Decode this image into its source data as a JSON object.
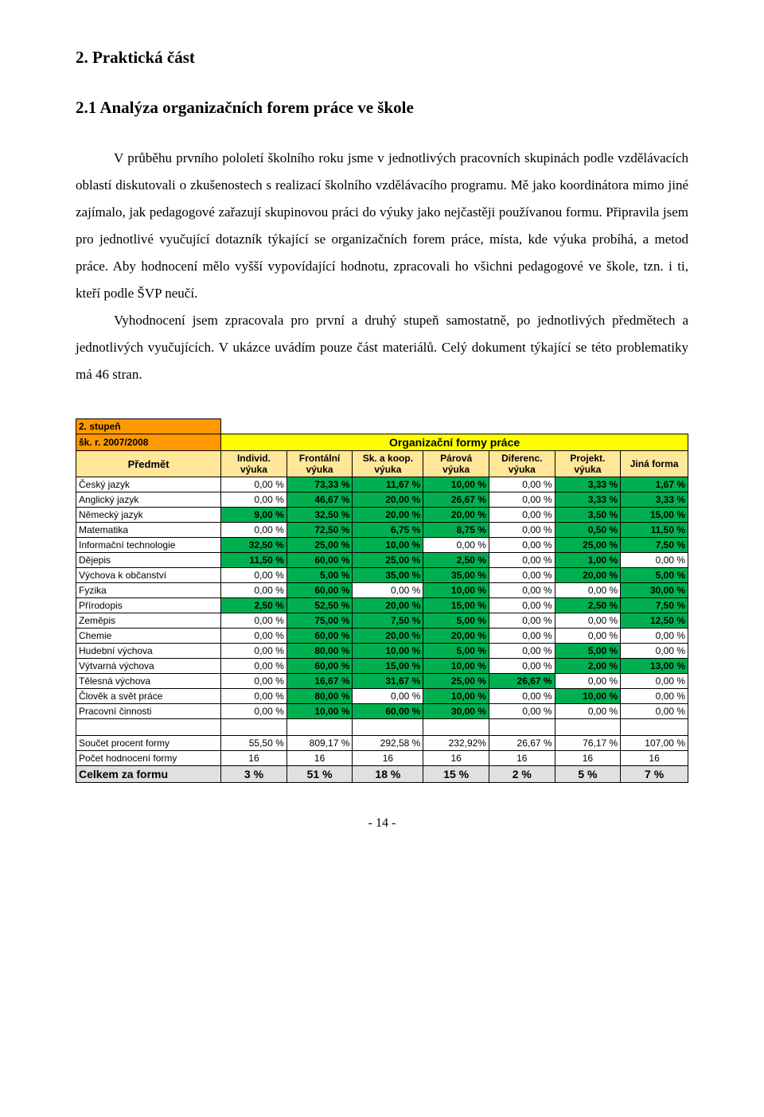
{
  "section_title": "2. Praktická část",
  "sub_title": "2.1  Analýza organizačních forem práce ve škole",
  "para1": "V průběhu prvního pololetí školního roku jsme v jednotlivých pracovních skupinách podle vzdělávacích oblastí diskutovali o zkušenostech s realizací školního vzdělávacího programu. Mě jako koordinátora mimo jiné zajímalo, jak pedagogové zařazují skupinovou práci do výuky jako nejčastěji používanou formu. Připravila jsem pro jednotlivé vyučující dotazník týkající se organizačních forem práce, místa, kde výuka probíhá, a metod práce. Aby hodnocení mělo vyšší vypovídající hodnotu, zpracovali ho všichni pedagogové ve škole, tzn. i ti, kteří podle ŠVP neučí.",
  "para2": "Vyhodnocení jsem zpracovala pro první a druhý stupeň samostatně, po jednotlivých předmětech a jednotlivých vyučujících. V ukázce uvádím pouze část materiálů. Celý dokument týkající se této problematiky má 46 stran.",
  "meta_rows": [
    "2. stupeň",
    "šk. r. 2007/2008"
  ],
  "table_header": "Organizační formy práce",
  "subject_header": "Předmět",
  "columns": [
    "Individ. výuka",
    "Frontální výuka",
    "Sk. a koop. výuka",
    "Párová výuka",
    "Diferenc. výuka",
    "Projekt. výuka",
    "Jiná forma"
  ],
  "rows": [
    {
      "label": "Český jazyk",
      "cells": [
        "0,00 %",
        "73,33 %",
        "11,67 %",
        "10,00 %",
        "0,00 %",
        "3,33 %",
        "1,67 %"
      ]
    },
    {
      "label": "Anglický jazyk",
      "cells": [
        "0,00 %",
        "46,67 %",
        "20,00 %",
        "26,67 %",
        "0,00 %",
        "3,33 %",
        "3,33 %"
      ]
    },
    {
      "label": "Německý jazyk",
      "cells": [
        "9,00 %",
        "32,50 %",
        "20,00 %",
        "20,00 %",
        "0,00 %",
        "3,50 %",
        "15,00 %"
      ]
    },
    {
      "label": "Matematika",
      "cells": [
        "0,00 %",
        "72,50 %",
        "6,75 %",
        "8,75 %",
        "0,00 %",
        "0,50 %",
        "11,50 %"
      ]
    },
    {
      "label": "Informační technologie",
      "cells": [
        "32,50 %",
        "25,00 %",
        "10,00 %",
        "0,00 %",
        "0,00 %",
        "25,00 %",
        "7,50 %"
      ]
    },
    {
      "label": "Dějepis",
      "cells": [
        "11,50 %",
        "60,00 %",
        "25,00 %",
        "2,50 %",
        "0,00 %",
        "1,00 %",
        "0,00 %"
      ]
    },
    {
      "label": "Výchova k občanství",
      "cells": [
        "0,00 %",
        "5,00 %",
        "35,00 %",
        "35,00 %",
        "0,00 %",
        "20,00 %",
        "5,00 %"
      ]
    },
    {
      "label": "Fyzika",
      "cells": [
        "0,00 %",
        "60,00 %",
        "0,00 %",
        "10,00 %",
        "0,00 %",
        "0,00 %",
        "30,00 %"
      ]
    },
    {
      "label": "Přírodopis",
      "cells": [
        "2,50 %",
        "52,50 %",
        "20,00 %",
        "15,00 %",
        "0,00 %",
        "2,50 %",
        "7,50 %"
      ]
    },
    {
      "label": "Zeměpis",
      "cells": [
        "0,00 %",
        "75,00 %",
        "7,50 %",
        "5,00 %",
        "0,00 %",
        "0,00 %",
        "12,50 %"
      ]
    },
    {
      "label": "Chemie",
      "cells": [
        "0,00 %",
        "60,00 %",
        "20,00 %",
        "20,00 %",
        "0,00 %",
        "0,00 %",
        "0,00 %"
      ]
    },
    {
      "label": "Hudební výchova",
      "cells": [
        "0,00 %",
        "80,00 %",
        "10,00 %",
        "5,00 %",
        "0,00 %",
        "5,00 %",
        "0,00 %"
      ]
    },
    {
      "label": "Výtvarná výchova",
      "cells": [
        "0,00 %",
        "60,00 %",
        "15,00 %",
        "10,00 %",
        "0,00 %",
        "2,00 %",
        "13,00 %"
      ]
    },
    {
      "label": "Tělesná výchova",
      "cells": [
        "0,00 %",
        "16,67 %",
        "31,67 %",
        "25,00 %",
        "26,67 %",
        "0,00 %",
        "0,00 %"
      ]
    },
    {
      "label": "Člověk a svět práce",
      "cells": [
        "0,00 %",
        "80,00 %",
        "0,00 %",
        "10,00 %",
        "0,00 %",
        "10,00 %",
        "0,00 %"
      ]
    },
    {
      "label": "Pracovní činnosti",
      "cells": [
        "0,00 %",
        "10,00 %",
        "60,00 %",
        "30,00 %",
        "0,00 %",
        "0,00 %",
        "0,00 %"
      ]
    }
  ],
  "sum_row": {
    "label": "Součet procent formy",
    "cells": [
      "55,50 %",
      "809,17 %",
      "292,58 %",
      "232,92%",
      "26,67 %",
      "76,17 %",
      "107,00 %"
    ]
  },
  "count_row": {
    "label": "Počet hodnocení formy",
    "cells": [
      "16",
      "16",
      "16",
      "16",
      "16",
      "16",
      "16"
    ]
  },
  "total_row": {
    "label": "Celkem za formu",
    "cells": [
      "3 %",
      "51 %",
      "18 %",
      "15 %",
      "2 %",
      "5 %",
      "7 %"
    ]
  },
  "highlight_map": {
    "Český jazyk": [
      1,
      2,
      3,
      5,
      6
    ],
    "Anglický jazyk": [
      1,
      2,
      3,
      5,
      6
    ],
    "Německý jazyk": [
      0,
      1,
      2,
      3,
      5,
      6
    ],
    "Matematika": [
      1,
      2,
      3,
      5,
      6
    ],
    "Informační technologie": [
      0,
      1,
      2,
      5,
      6
    ],
    "Dějepis": [
      0,
      1,
      2,
      3,
      5
    ],
    "Výchova k občanství": [
      1,
      2,
      3,
      5,
      6
    ],
    "Fyzika": [
      1,
      3,
      6
    ],
    "Přírodopis": [
      0,
      1,
      2,
      3,
      5,
      6
    ],
    "Zeměpis": [
      1,
      2,
      3,
      6
    ],
    "Chemie": [
      1,
      2,
      3
    ],
    "Hudební výchova": [
      1,
      2,
      3,
      5
    ],
    "Výtvarná výchova": [
      1,
      2,
      3,
      5,
      6
    ],
    "Tělesná výchova": [
      1,
      2,
      3,
      4
    ],
    "Člověk a svět práce": [
      1,
      3,
      5
    ],
    "Pracovní činnosti": [
      1,
      2,
      3
    ]
  },
  "colors": {
    "header_gold": "#ffff00",
    "meta_gold": "#ff9900",
    "col_hdr_gold": "#ffe699",
    "highlight_green": "#00b050",
    "row_grey": "#e0e0e0",
    "border": "#000000",
    "text": "#000000"
  },
  "col_widths": [
    "172px",
    "78px",
    "78px",
    "84px",
    "78px",
    "78px",
    "78px",
    "80px"
  ],
  "footer": "-   14   -",
  "font_sizes": {
    "heading": 21,
    "body": 17,
    "table": 12,
    "total_row": 14
  }
}
